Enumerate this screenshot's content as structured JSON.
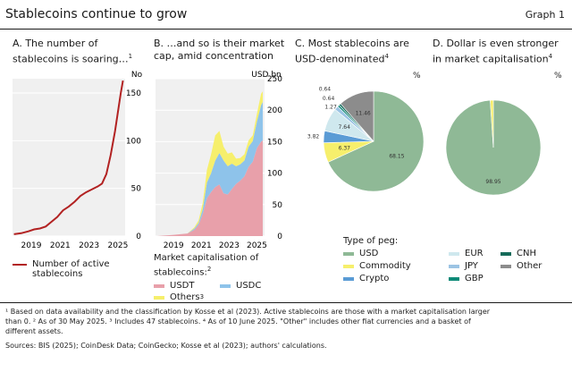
{
  "header": {
    "title": "Stablecoins continue to grow",
    "graph_label": "Graph 1"
  },
  "panels": {
    "a": {
      "title1": "A. The number of",
      "title2": "stablecoins is soaring…",
      "sup": "1",
      "unit": "No",
      "legend1": "Number of active",
      "legend2": "stablecoins"
    },
    "b": {
      "title1": "B. …and so is their market",
      "title2": "cap, amid concentration",
      "unit": "USD bn",
      "legend_title1": "Market capitalisation of",
      "legend_title2": "stablecoins:",
      "legend_sup": "2",
      "usdt": "USDT",
      "usdc": "USDC",
      "others": "Others",
      "others_sup": "3"
    },
    "c": {
      "title1": "C. Most stablecoins are",
      "title2": "USD-denominated",
      "sup": "4",
      "unit": "%"
    },
    "d": {
      "title1": "D. Dollar is even stronger",
      "title2": "in market capitalisation",
      "sup": "4",
      "unit": "%"
    }
  },
  "peg_legend": {
    "title": "Type of peg:",
    "items": [
      {
        "label": "USD",
        "color": "#8fb996"
      },
      {
        "label": "EUR",
        "color": "#cfe8ee"
      },
      {
        "label": "CNH",
        "color": "#156b5a"
      },
      {
        "label": "Commodity",
        "color": "#f6ef6c"
      },
      {
        "label": "JPY",
        "color": "#9cc4e4"
      },
      {
        "label": "Other",
        "color": "#8c8c8c"
      },
      {
        "label": "Crypto",
        "color": "#5a9bd5"
      },
      {
        "label": "GBP",
        "color": "#0e8a78"
      }
    ]
  },
  "footnotes": {
    "line1": "¹ Based on data availability and the classification by Kosse et al (2023). Active stablecoins are those with a market capitalisation larger",
    "line2": "than 0.   ² As of 30 May 2025.   ³ Includes 47 stablecoins.   ⁴ As of 10 June 2025. \"Other\" includes other fiat currencies and a basket of",
    "line3": "different assets.",
    "sources": "Sources: BIS (2025); CoinDesk Data; CoinGecko; Kosse et al (2023); authors' calculations."
  },
  "chart_data": [
    {
      "type": "line",
      "title": "A. The number of stablecoins is soaring…",
      "ylabel": "No",
      "ylim": [
        0,
        165
      ],
      "yticks": [
        0,
        50,
        100,
        150
      ],
      "xticks": [
        "2019",
        "2021",
        "2023",
        "2025"
      ],
      "series": [
        {
          "name": "Number of active stablecoins",
          "color": "#b22222",
          "x": [
            2017.8,
            2018.3,
            2018.8,
            2019.2,
            2019.6,
            2020.0,
            2020.4,
            2020.8,
            2021.2,
            2021.6,
            2022.0,
            2022.4,
            2022.8,
            2023.2,
            2023.6,
            2023.9,
            2024.2,
            2024.5,
            2024.8,
            2025.0,
            2025.2,
            2025.35
          ],
          "y": [
            2,
            3,
            5,
            7,
            8,
            10,
            15,
            20,
            27,
            31,
            36,
            42,
            46,
            49,
            52,
            55,
            65,
            85,
            110,
            130,
            150,
            163
          ]
        }
      ]
    },
    {
      "type": "area",
      "title": "B. …and so is their market cap, amid concentration",
      "ylabel": "USD bn",
      "ylim": [
        0,
        250
      ],
      "yticks": [
        0,
        50,
        100,
        150,
        200,
        250
      ],
      "xticks": [
        "2019",
        "2021",
        "2023",
        "2025"
      ],
      "x": [
        2017.8,
        2018.5,
        2019.0,
        2019.5,
        2020.0,
        2020.5,
        2020.8,
        2021.1,
        2021.4,
        2021.7,
        2022.0,
        2022.3,
        2022.6,
        2022.9,
        2023.2,
        2023.5,
        2023.8,
        2024.1,
        2024.4,
        2024.7,
        2025.0,
        2025.3,
        2025.42
      ],
      "series": [
        {
          "name": "USDT",
          "color": "#e8a0aa",
          "values": [
            0,
            1,
            2,
            3,
            4,
            10,
            18,
            35,
            60,
            70,
            78,
            82,
            68,
            66,
            75,
            83,
            88,
            95,
            110,
            118,
            140,
            150,
            152
          ]
        },
        {
          "name": "USDC",
          "color": "#8ec3ea",
          "values": [
            0,
            0,
            0,
            0,
            0,
            2,
            3,
            8,
            25,
            30,
            42,
            50,
            52,
            45,
            40,
            28,
            26,
            25,
            32,
            33,
            42,
            58,
            61
          ]
        },
        {
          "name": "Others",
          "color": "#f6ef6c",
          "values": [
            0,
            0,
            0,
            0,
            0,
            2,
            4,
            10,
            20,
            30,
            40,
            35,
            22,
            20,
            18,
            12,
            10,
            10,
            10,
            9,
            12,
            18,
            17
          ]
        }
      ]
    },
    {
      "type": "pie",
      "title": "C. Most stablecoins are USD-denominated",
      "ylabel": "%",
      "slices": [
        {
          "label": "USD",
          "value": 68.15,
          "color": "#8fb996"
        },
        {
          "label": "Commodity",
          "value": 6.37,
          "color": "#f6ef6c"
        },
        {
          "label": "Crypto",
          "value": 3.82,
          "color": "#5a9bd5"
        },
        {
          "label": "EUR",
          "value": 7.64,
          "color": "#cfe8ee"
        },
        {
          "label": "JPY",
          "value": 1.27,
          "color": "#9cc4e4"
        },
        {
          "label": "GBP",
          "value": 0.64,
          "color": "#0e8a78"
        },
        {
          "label": "CNH",
          "value": 0.64,
          "color": "#156b5a"
        },
        {
          "label": "Other",
          "value": 11.46,
          "color": "#8c8c8c"
        }
      ]
    },
    {
      "type": "pie",
      "title": "D. Dollar is even stronger in market capitalisation",
      "ylabel": "%",
      "slices": [
        {
          "label": "USD",
          "value": 98.95,
          "color": "#8fb996"
        },
        {
          "label": "Commodity",
          "value": 1.05,
          "color": "#f6ef6c"
        }
      ]
    }
  ]
}
